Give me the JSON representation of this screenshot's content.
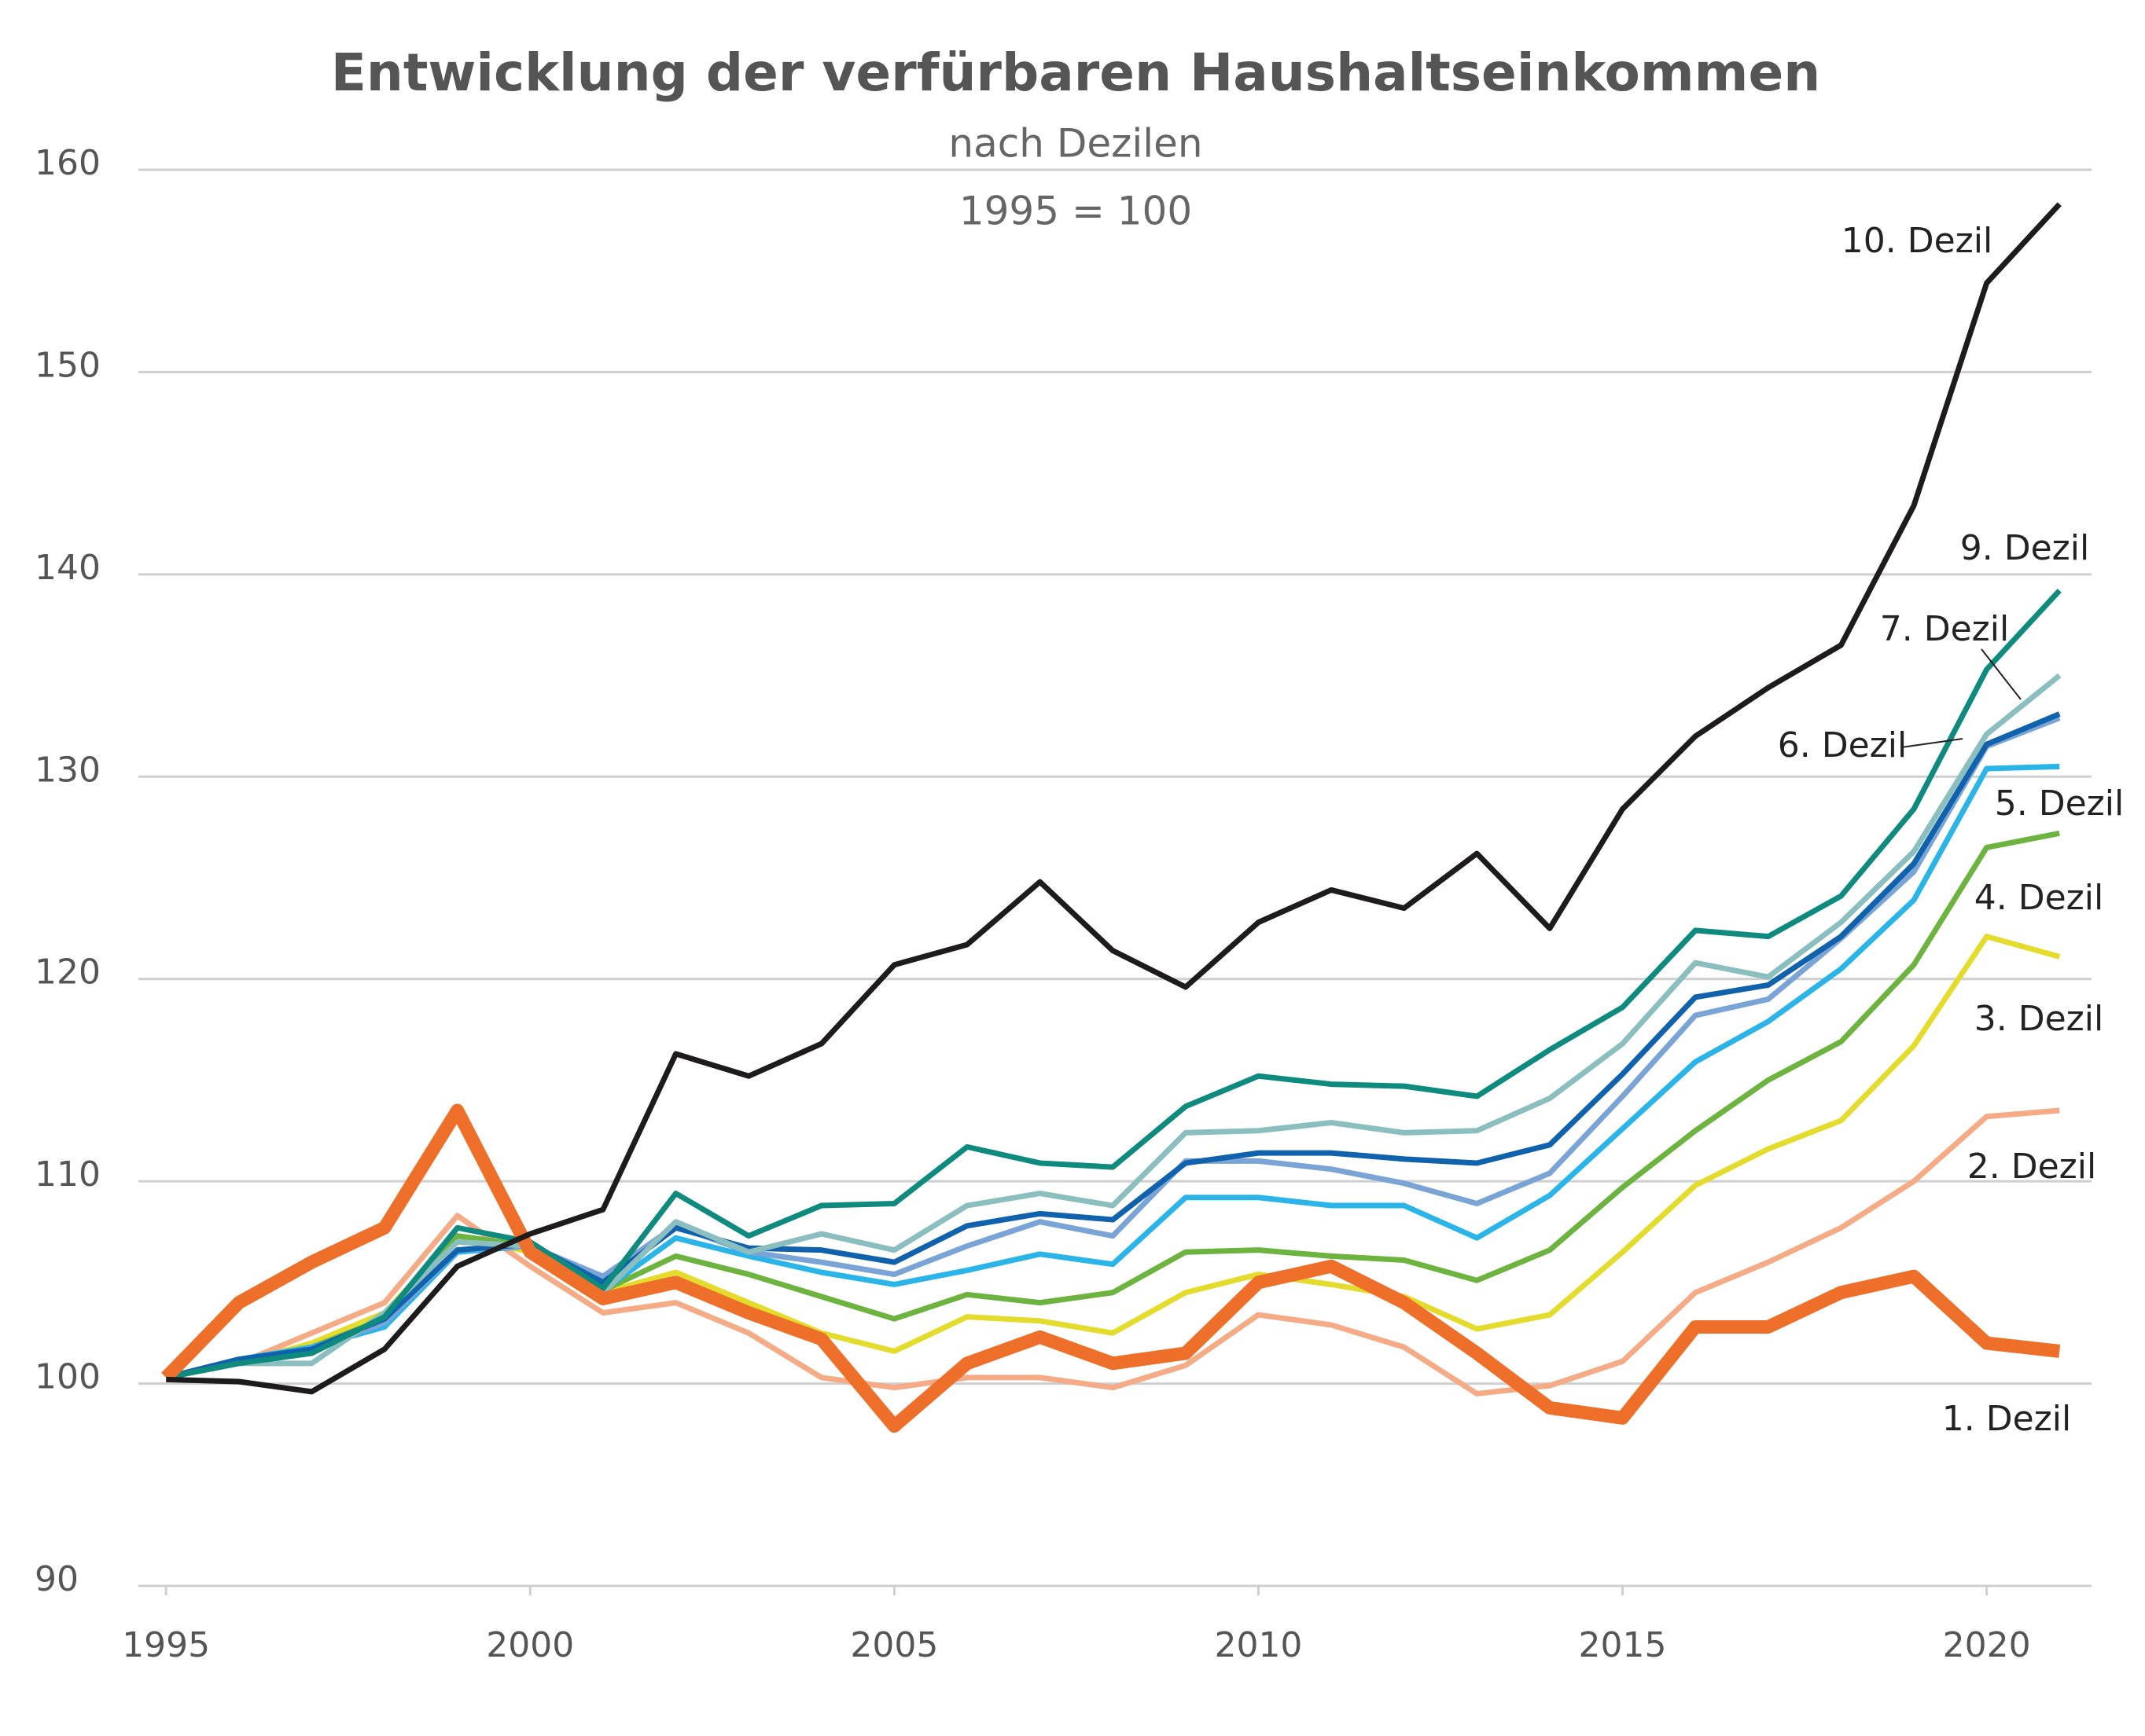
{
  "chart_data": {
    "type": "line",
    "title": "Entwicklung der verfürbaren Haushaltseinkommen",
    "subtitle": [
      "nach Dezilen",
      "1995 = 100"
    ],
    "x": [
      1995,
      1996,
      1997,
      1998,
      1999,
      2000,
      2001,
      2002,
      2003,
      2004,
      2005,
      2006,
      2007,
      2008,
      2009,
      2010,
      2011,
      2012,
      2013,
      2014,
      2015,
      2016,
      2017,
      2018,
      2019,
      2020,
      2021
    ],
    "xlim": [
      1994.62,
      2021.44
    ],
    "xticks": [
      1995,
      2000,
      2005,
      2010,
      2015,
      2020
    ],
    "ylim": [
      90,
      160
    ],
    "yticks": [
      90,
      100,
      110,
      120,
      130,
      140,
      150,
      160
    ],
    "grid": true,
    "series": [
      {
        "name": "2. Dezil",
        "color": "#f4ab86",
        "values": [
          100.3,
          101.0,
          102.5,
          104.0,
          108.3,
          105.8,
          103.5,
          104.0,
          102.5,
          100.3,
          99.8,
          100.3,
          100.3,
          99.8,
          100.9,
          103.4,
          102.9,
          101.8,
          99.5,
          99.9,
          101.1,
          104.5,
          106.0,
          107.7,
          110.0,
          113.2,
          113.5
        ]
      },
      {
        "name": "3. Dezil",
        "color": "#e3dc2c",
        "values": [
          100.3,
          101.0,
          102.0,
          103.5,
          107.3,
          106.5,
          104.5,
          105.5,
          104.0,
          102.5,
          101.6,
          103.3,
          103.1,
          102.5,
          104.5,
          105.4,
          104.9,
          104.3,
          102.7,
          103.4,
          106.5,
          109.8,
          111.6,
          113.0,
          116.7,
          122.1,
          121.1
        ]
      },
      {
        "name": "4. Dezil",
        "color": "#6db33f",
        "values": [
          100.3,
          101.0,
          101.8,
          103.2,
          107.3,
          106.8,
          104.6,
          106.3,
          105.4,
          104.3,
          103.2,
          104.4,
          104.0,
          104.5,
          106.5,
          106.6,
          106.3,
          106.1,
          105.1,
          106.6,
          109.7,
          112.5,
          115.0,
          116.9,
          120.7,
          126.5,
          127.2
        ]
      },
      {
        "name": "5. Dezil",
        "color": "#2ab4e8",
        "values": [
          100.3,
          101.2,
          101.8,
          102.8,
          106.5,
          106.8,
          104.6,
          107.2,
          106.3,
          105.5,
          104.9,
          105.6,
          106.4,
          105.9,
          109.2,
          109.2,
          108.8,
          108.8,
          107.2,
          109.3,
          112.6,
          115.9,
          117.9,
          120.5,
          123.9,
          130.4,
          130.5
        ]
      },
      {
        "name": null,
        "color": "#7ba4d6",
        "values": [
          100.3,
          101.2,
          101.7,
          103.0,
          106.6,
          106.8,
          105.3,
          107.8,
          106.5,
          106.0,
          105.4,
          106.8,
          108.0,
          107.3,
          111.0,
          111.0,
          110.6,
          109.9,
          108.9,
          110.4,
          114.2,
          118.2,
          119.0,
          122.0,
          125.3,
          131.5,
          132.9
        ]
      },
      {
        "name": "6. Dezil",
        "color": "#1062ad",
        "values": [
          100.3,
          101.2,
          101.7,
          103.2,
          106.6,
          106.9,
          105.0,
          107.7,
          106.7,
          106.6,
          106.0,
          107.8,
          108.4,
          108.1,
          110.9,
          111.4,
          111.4,
          111.1,
          110.9,
          111.8,
          115.3,
          119.1,
          119.7,
          122.1,
          125.7,
          131.6,
          133.1
        ]
      },
      {
        "name": "7. Dezil",
        "color": "#8bbfbf",
        "values": [
          100.3,
          101.0,
          101.0,
          103.5,
          107.0,
          106.8,
          104.5,
          108.0,
          106.5,
          107.4,
          106.6,
          108.8,
          109.4,
          108.8,
          112.4,
          112.5,
          112.9,
          112.4,
          112.5,
          114.1,
          116.8,
          120.8,
          120.1,
          122.8,
          126.3,
          132.1,
          135.0
        ]
      },
      {
        "name": "9. Dezil",
        "color": "#0e8a7e",
        "values": [
          100.3,
          101.0,
          101.5,
          103.3,
          107.7,
          107.0,
          104.7,
          109.4,
          107.3,
          108.8,
          108.9,
          111.7,
          110.9,
          110.7,
          113.7,
          115.2,
          114.8,
          114.7,
          114.2,
          116.5,
          118.6,
          122.4,
          122.1,
          124.1,
          128.4,
          135.3,
          139.2
        ]
      },
      {
        "name": "1. Dezil",
        "color": "#ee6f2a",
        "values": [
          100.3,
          104.0,
          106.0,
          107.7,
          113.5,
          106.5,
          104.2,
          105.0,
          103.5,
          102.2,
          97.9,
          101.0,
          102.3,
          101.0,
          101.5,
          105.0,
          105.8,
          104.0,
          101.5,
          98.8,
          98.3,
          102.8,
          102.8,
          104.5,
          105.3,
          102.0,
          101.6
        ]
      },
      {
        "name": "10. Dezil",
        "color": "#1e1b1c",
        "values": [
          100.2,
          100.1,
          99.6,
          101.7,
          105.8,
          107.4,
          108.6,
          116.3,
          115.2,
          116.8,
          120.7,
          121.7,
          124.8,
          121.4,
          119.6,
          122.8,
          124.4,
          123.5,
          126.2,
          122.5,
          128.4,
          132.0,
          134.4,
          136.5,
          143.4,
          154.4,
          158.3
        ]
      }
    ]
  }
}
